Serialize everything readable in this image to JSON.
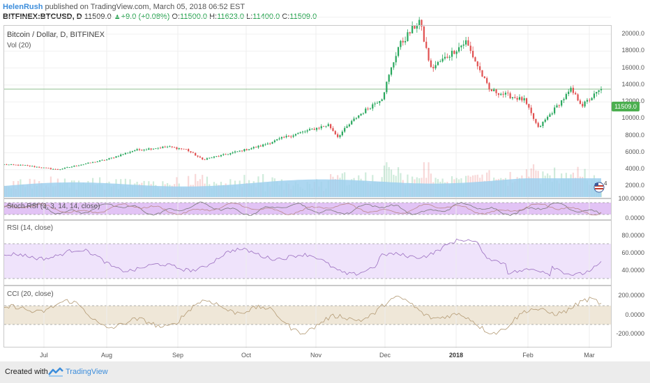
{
  "header": {
    "author": "HelenRush",
    "published_text": "published on TradingView.com, March 05, 2018 06:52 EST"
  },
  "symbol_bar": {
    "symbol": "BITFINEX:BTCUSD, D",
    "last": "11509.0",
    "change": "+9.0 (+0.08%)",
    "open_label": "O:",
    "open": "11500.0",
    "high_label": "H:",
    "high": "11623.0",
    "low_label": "L:",
    "low": "11400.0",
    "close_label": "C:",
    "close": "11509.0"
  },
  "main_panel": {
    "title": "Bitcoin / Dollar, D, BITFINEX",
    "vol_label": "Vol (20)",
    "price_tag": "11509.0",
    "y_ticks": [
      "20000.0",
      "18000.0",
      "16000.0",
      "14000.0",
      "12000.0",
      "10000.0",
      "8000.0",
      "6000.0",
      "4000.0",
      "2000.0"
    ],
    "badge_count": "4"
  },
  "stoch_panel": {
    "label": "Stoch RSI (3, 3, 14, 14, close)",
    "y_ticks": [
      "100.0000",
      "0.0000"
    ]
  },
  "rsi_panel": {
    "label": "RSI (14, close)",
    "y_ticks": [
      "80.0000",
      "60.0000",
      "40.0000"
    ]
  },
  "cci_panel": {
    "label": "CCI (20, close)",
    "y_ticks": [
      "200.0000",
      "0.0000",
      "-200.0000"
    ]
  },
  "x_axis": {
    "labels": [
      "Jul",
      "Aug",
      "Sep",
      "Oct",
      "Nov",
      "Dec",
      "2018",
      "Feb",
      "Mar"
    ]
  },
  "footer": {
    "created_with": "Created with",
    "brand": "TradingView"
  },
  "colors": {
    "up": "#26a65b",
    "down": "#e04f4f",
    "volume": "#9fd0ee",
    "stoch_bg": "#e2c3f5",
    "rsi_bg": "#efe3fb",
    "cci_bg": "#efe7d8",
    "brand_blue": "#3c8ddb",
    "price_tag": "#4caf50"
  },
  "chart_data": {
    "type": "candlestick",
    "title": "Bitcoin / Dollar, D, BITFINEX",
    "x_labels": [
      "Jul",
      "Aug",
      "Sep",
      "Oct",
      "Nov",
      "Dec",
      "2018",
      "Feb",
      "Mar"
    ],
    "ylim": [
      0,
      21000
    ],
    "price_anchors": [
      {
        "x": "Jun 22 2017",
        "y": 2600
      },
      {
        "x": "Jul 01 2017",
        "y": 2500
      },
      {
        "x": "Jul 15 2017",
        "y": 2000
      },
      {
        "x": "Jul 25 2017",
        "y": 2600
      },
      {
        "x": "Aug 05 2017",
        "y": 3200
      },
      {
        "x": "Aug 17 2017",
        "y": 4300
      },
      {
        "x": "Aug 31 2017",
        "y": 4700
      },
      {
        "x": "Sep 08 2017",
        "y": 4400
      },
      {
        "x": "Sep 15 2017",
        "y": 3200
      },
      {
        "x": "Sep 25 2017",
        "y": 3800
      },
      {
        "x": "Oct 10 2017",
        "y": 4800
      },
      {
        "x": "Oct 20 2017",
        "y": 5800
      },
      {
        "x": "Nov 08 2017",
        "y": 7300
      },
      {
        "x": "Nov 12 2017",
        "y": 5900
      },
      {
        "x": "Nov 20 2017",
        "y": 8200
      },
      {
        "x": "Dec 01 2017",
        "y": 10500
      },
      {
        "x": "Dec 08 2017",
        "y": 16500
      },
      {
        "x": "Dec 17 2017",
        "y": 19600
      },
      {
        "x": "Dec 22 2017",
        "y": 13900
      },
      {
        "x": "Jan 06 2018",
        "y": 17100
      },
      {
        "x": "Jan 16 2018",
        "y": 11400
      },
      {
        "x": "Jan 31 2018",
        "y": 10200
      },
      {
        "x": "Feb 06 2018",
        "y": 6900
      },
      {
        "x": "Feb 20 2018",
        "y": 11400
      },
      {
        "x": "Feb 25 2018",
        "y": 9600
      },
      {
        "x": "Mar 05 2018",
        "y": 11509
      }
    ],
    "stoch_rsi_range": [
      0,
      100
    ],
    "rsi_range": [
      30,
      80
    ],
    "cci_range": [
      -250,
      250
    ]
  }
}
